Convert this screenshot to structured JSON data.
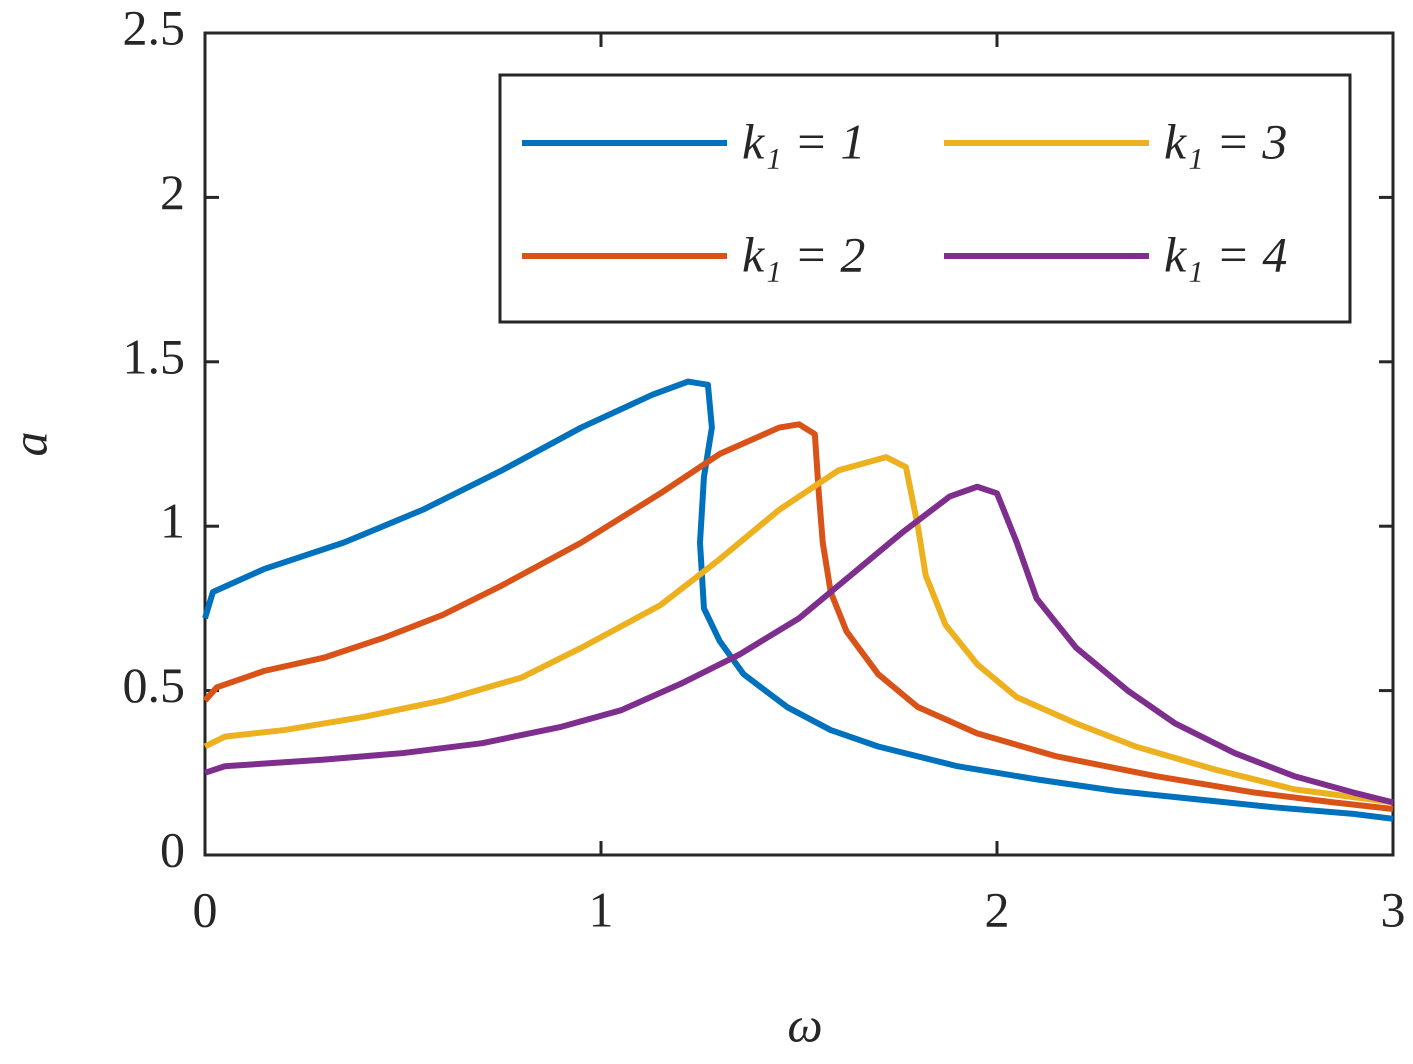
{
  "chart_data": {
    "type": "line",
    "xlabel": "ω",
    "ylabel": "a",
    "xlim": [
      0,
      3
    ],
    "ylim": [
      0,
      2.5
    ],
    "xticks": [
      0,
      1,
      2,
      3
    ],
    "yticks": [
      0,
      0.5,
      1,
      1.5,
      2,
      2.5
    ],
    "grid": false,
    "legend": "upper right",
    "series": [
      {
        "name": "k₁ = 1",
        "color": "#0072bd",
        "x": [
          0,
          0.02,
          0.15,
          0.35,
          0.55,
          0.75,
          0.95,
          1.13,
          1.22,
          1.27,
          1.28,
          1.26,
          1.25,
          1.26,
          1.3,
          1.36,
          1.47,
          1.58,
          1.7,
          1.9,
          2.1,
          2.3,
          2.5,
          2.7,
          2.9,
          3
        ],
        "values": [
          0.72,
          0.8,
          0.87,
          0.95,
          1.05,
          1.17,
          1.3,
          1.4,
          1.44,
          1.43,
          1.3,
          1.15,
          0.95,
          0.75,
          0.65,
          0.55,
          0.45,
          0.38,
          0.33,
          0.27,
          0.23,
          0.195,
          0.17,
          0.145,
          0.125,
          0.11
        ]
      },
      {
        "name": "k₁ = 2",
        "color": "#d95319",
        "x": [
          0,
          0.03,
          0.15,
          0.3,
          0.45,
          0.6,
          0.75,
          0.95,
          1.15,
          1.3,
          1.45,
          1.5,
          1.54,
          1.55,
          1.56,
          1.58,
          1.62,
          1.7,
          1.8,
          1.95,
          2.15,
          2.4,
          2.65,
          2.85,
          3
        ],
        "values": [
          0.47,
          0.51,
          0.56,
          0.6,
          0.66,
          0.73,
          0.82,
          0.95,
          1.1,
          1.22,
          1.3,
          1.31,
          1.28,
          1.1,
          0.95,
          0.8,
          0.68,
          0.55,
          0.45,
          0.37,
          0.3,
          0.24,
          0.19,
          0.16,
          0.14
        ]
      },
      {
        "name": "k₁ = 3",
        "color": "#edb120",
        "x": [
          0,
          0.05,
          0.2,
          0.4,
          0.6,
          0.8,
          0.95,
          1.15,
          1.3,
          1.45,
          1.6,
          1.72,
          1.77,
          1.8,
          1.82,
          1.87,
          1.95,
          2.05,
          2.2,
          2.35,
          2.55,
          2.75,
          3
        ],
        "values": [
          0.33,
          0.36,
          0.38,
          0.42,
          0.47,
          0.54,
          0.63,
          0.76,
          0.9,
          1.05,
          1.17,
          1.21,
          1.18,
          1.0,
          0.85,
          0.7,
          0.58,
          0.48,
          0.4,
          0.33,
          0.26,
          0.2,
          0.16
        ]
      },
      {
        "name": "k₁ = 4",
        "color": "#7e2f8e",
        "x": [
          0,
          0.05,
          0.3,
          0.5,
          0.7,
          0.9,
          1.05,
          1.2,
          1.35,
          1.5,
          1.63,
          1.76,
          1.88,
          1.95,
          2.0,
          2.05,
          2.1,
          2.2,
          2.33,
          2.45,
          2.6,
          2.75,
          2.9,
          3
        ],
        "values": [
          0.25,
          0.27,
          0.29,
          0.31,
          0.34,
          0.39,
          0.44,
          0.52,
          0.61,
          0.72,
          0.85,
          0.98,
          1.09,
          1.12,
          1.1,
          0.95,
          0.78,
          0.63,
          0.5,
          0.4,
          0.31,
          0.24,
          0.19,
          0.16
        ]
      }
    ]
  }
}
